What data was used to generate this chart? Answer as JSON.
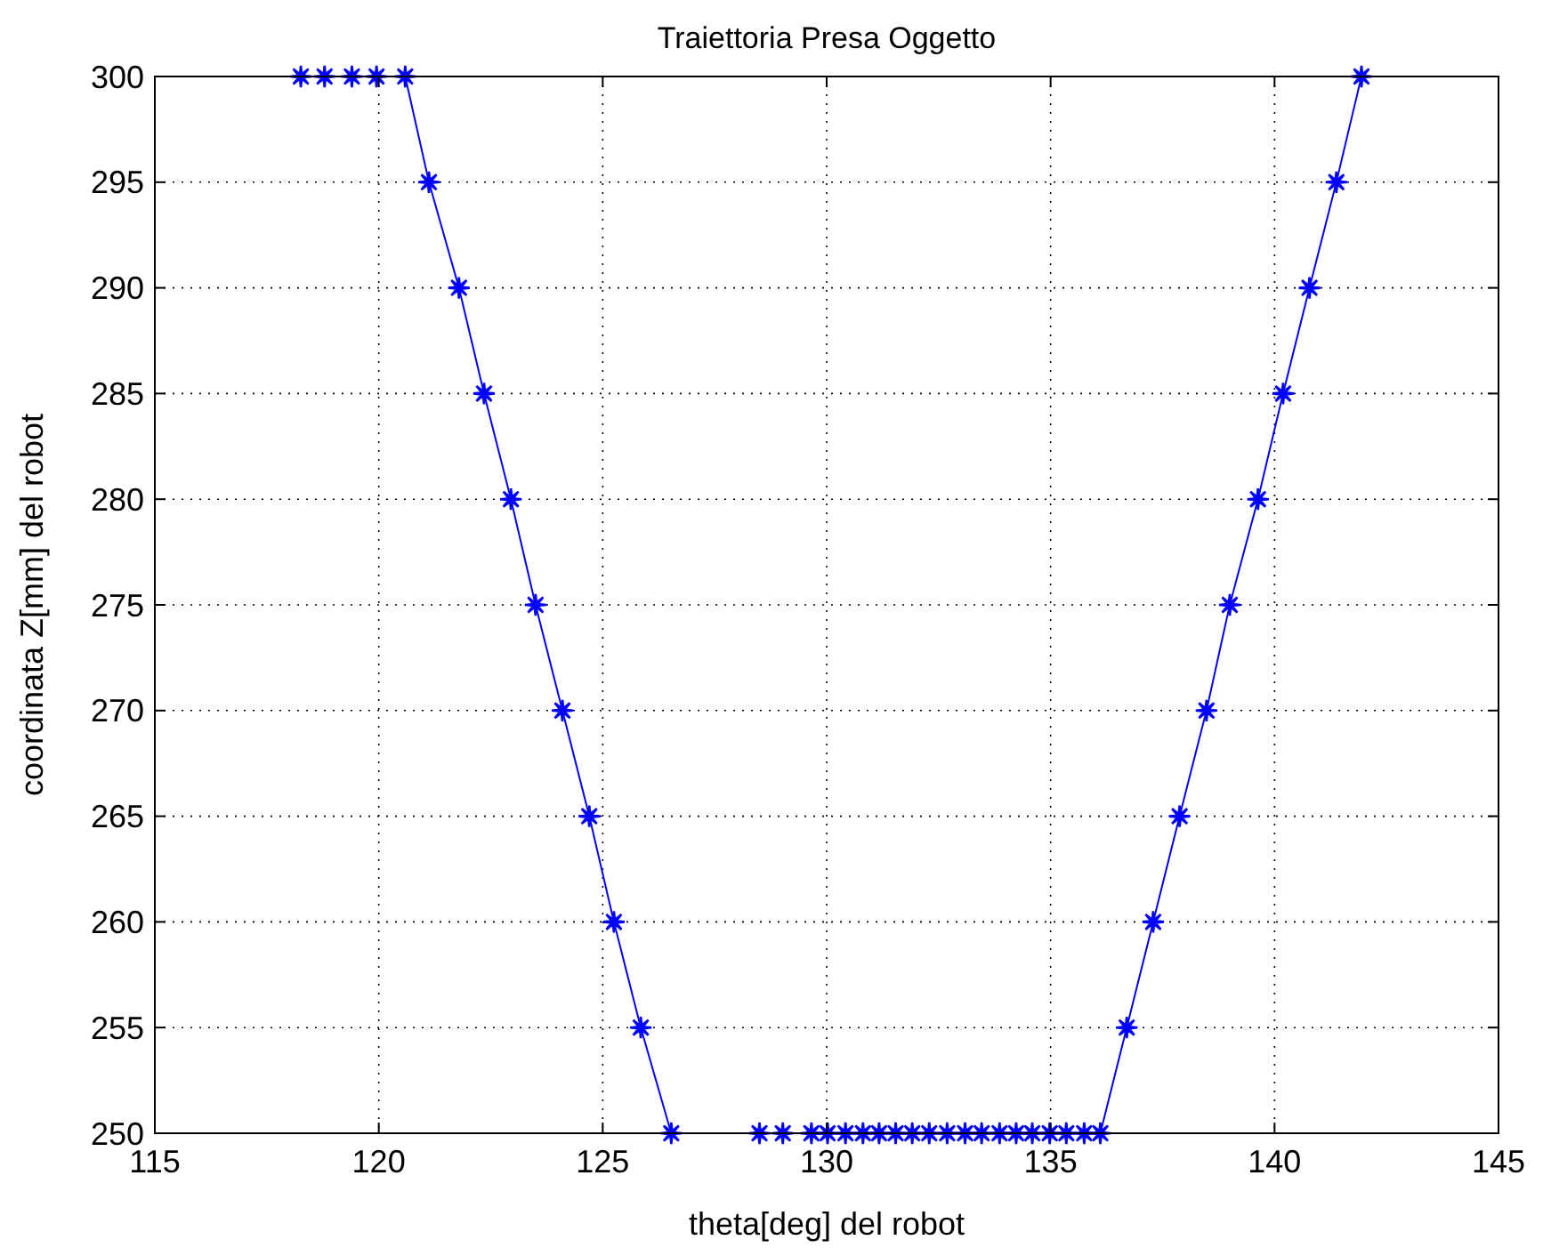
{
  "chart_data": {
    "type": "line",
    "title": "Traiettoria Presa Oggetto",
    "xlabel": "theta[deg] del robot",
    "ylabel": "coordinata Z[mm] del robot",
    "series": [
      {
        "color": "#0000ff",
        "x": [
          118.26,
          118.79,
          119.4,
          119.95,
          120.59,
          121.12,
          121.79,
          122.35,
          122.95,
          123.5,
          124.1,
          124.7,
          125.25,
          125.85,
          126.53,
          128.5,
          129.02,
          129.66,
          130.02,
          130.42,
          130.81,
          131.17,
          131.54,
          131.91,
          132.29,
          132.69,
          133.09,
          133.46,
          133.86,
          134.23,
          134.59,
          134.98,
          135.35,
          135.75,
          136.11,
          136.7,
          137.29,
          137.88,
          138.48,
          139.0,
          139.63,
          140.19,
          140.78,
          141.38,
          141.94
        ],
        "values": [
          300,
          300,
          300,
          300,
          300,
          295,
          290,
          285,
          280,
          275,
          270,
          265,
          260,
          255,
          250,
          250,
          250,
          250,
          250,
          250,
          250,
          250,
          250,
          250,
          250,
          250,
          250,
          250,
          250,
          250,
          250,
          250,
          250,
          250,
          250,
          255,
          260,
          265,
          270,
          275,
          280,
          285,
          290,
          295,
          300
        ]
      }
    ],
    "xlim": [
      115,
      145
    ],
    "xticks": [
      115,
      120,
      125,
      130,
      135,
      140,
      145
    ],
    "ylim": [
      250,
      300
    ],
    "yticks": [
      250,
      255,
      260,
      265,
      270,
      275,
      280,
      285,
      290,
      295,
      300
    ],
    "grid": true,
    "marker": "star",
    "line_style": "solid"
  }
}
